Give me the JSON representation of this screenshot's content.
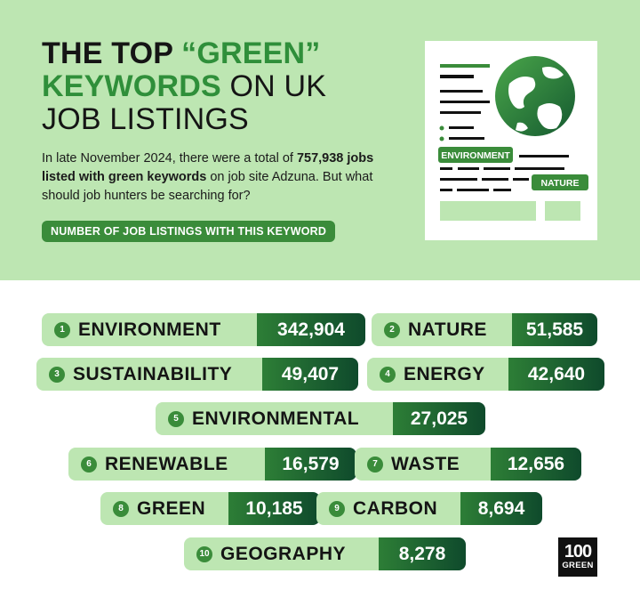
{
  "header": {
    "title_line1": "THE TOP",
    "title_green1": "“GREEN”",
    "title_green2": "KEYWORDS",
    "title_line2_rest": "ON UK",
    "title_line3": "JOB LISTINGS",
    "intro_part1": "In late November 2024, there were a total of",
    "intro_bold": "757,938 jobs listed with green keywords",
    "intro_part2": "on job site Adzuna. But what should job hunters be searching for?",
    "subhead": "NUMBER OF JOB LISTINGS WITH THIS KEYWORD"
  },
  "illustration": {
    "label_environment": "ENVIRONMENT",
    "label_nature": "NATURE"
  },
  "keywords": [
    {
      "rank": "1",
      "keyword": "ENVIRONMENT",
      "value": "342,904"
    },
    {
      "rank": "2",
      "keyword": "NATURE",
      "value": "51,585"
    },
    {
      "rank": "3",
      "keyword": "SUSTAINABILITY",
      "value": "49,407"
    },
    {
      "rank": "4",
      "keyword": "ENERGY",
      "value": "42,640"
    },
    {
      "rank": "5",
      "keyword": "ENVIRONMENTAL",
      "value": "27,025"
    },
    {
      "rank": "6",
      "keyword": "RENEWABLE",
      "value": "16,579"
    },
    {
      "rank": "7",
      "keyword": "WASTE",
      "value": "12,656"
    },
    {
      "rank": "8",
      "keyword": "GREEN",
      "value": "10,185"
    },
    {
      "rank": "9",
      "keyword": "CARBON",
      "value": "8,694"
    },
    {
      "rank": "10",
      "keyword": "GEOGRAPHY",
      "value": "8,278"
    }
  ],
  "logo": {
    "line1": "100",
    "line2": "GREEN"
  },
  "colors": {
    "header_bg": "#bde6b2",
    "accent": "#3a8c3a",
    "title_green": "#2f8f3a",
    "value_dark": "#0f4a2c"
  }
}
